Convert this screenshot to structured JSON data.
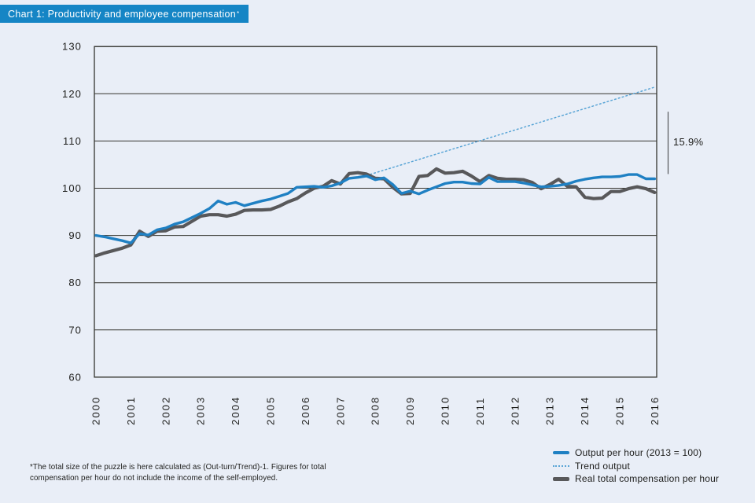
{
  "page": {
    "background": "#e9eef7"
  },
  "header": {
    "title": "Chart 1: Productivity and employee compensation",
    "title_marker": "*",
    "banner_color": "#1585c5"
  },
  "footnote": {
    "text": "*The total size of the puzzle is here calculated as (Out-turn/Trend)-1. Figures for total compensation per hour do not include the income of the self-employed."
  },
  "chart_data": {
    "type": "line",
    "title": "Chart 1: Productivity and employee compensation",
    "xlabel": "",
    "ylabel": "",
    "ylim": [
      60,
      130
    ],
    "xlim": [
      2000,
      2016.1
    ],
    "grid": "horizontal",
    "legend_position": "bottom-right",
    "y_ticks": [
      60,
      70,
      80,
      90,
      100,
      110,
      120,
      130
    ],
    "x_ticks": [
      2000,
      2001,
      2002,
      2003,
      2004,
      2005,
      2006,
      2007,
      2008,
      2009,
      2010,
      2011,
      2012,
      2013,
      2014,
      2015,
      2016
    ],
    "x": [
      2000.0,
      2000.25,
      2000.5,
      2000.75,
      2001.0,
      2001.25,
      2001.5,
      2001.75,
      2002.0,
      2002.25,
      2002.5,
      2002.75,
      2003.0,
      2003.25,
      2003.5,
      2003.75,
      2004.0,
      2004.25,
      2004.5,
      2004.75,
      2005.0,
      2005.25,
      2005.5,
      2005.75,
      2006.0,
      2006.25,
      2006.5,
      2006.75,
      2007.0,
      2007.25,
      2007.5,
      2007.75,
      2008.0,
      2008.25,
      2008.5,
      2008.75,
      2009.0,
      2009.25,
      2009.5,
      2009.75,
      2010.0,
      2010.25,
      2010.5,
      2010.75,
      2011.0,
      2011.25,
      2011.5,
      2011.75,
      2012.0,
      2012.25,
      2012.5,
      2012.75,
      2013.0,
      2013.25,
      2013.5,
      2013.75,
      2014.0,
      2014.25,
      2014.5,
      2014.75,
      2015.0,
      2015.25,
      2015.5,
      2015.75,
      2016.0
    ],
    "series": [
      {
        "name": "Output per hour (2013 = 100)",
        "color": "#1f80c3",
        "style": "solid",
        "width": 3.4,
        "values": [
          90.0,
          89.7,
          89.3,
          88.9,
          88.4,
          90.4,
          90.1,
          91.2,
          91.6,
          92.4,
          92.9,
          93.8,
          94.7,
          95.7,
          97.3,
          96.6,
          97.0,
          96.3,
          96.8,
          97.3,
          97.7,
          98.3,
          98.9,
          100.2,
          100.3,
          100.4,
          100.2,
          100.5,
          101.1,
          102.1,
          102.3,
          102.6,
          101.8,
          102.2,
          100.8,
          98.9,
          99.4,
          98.8,
          99.6,
          100.3,
          101.0,
          101.3,
          101.3,
          101.0,
          100.9,
          102.3,
          101.4,
          101.4,
          101.4,
          101.1,
          100.7,
          100.3,
          100.4,
          100.6,
          100.9,
          101.5,
          101.9,
          102.2,
          102.4,
          102.4,
          102.5,
          102.9,
          102.9,
          102.0,
          102.0
        ]
      },
      {
        "name": "Trend output",
        "color": "#5aa5d6",
        "style": "dotted",
        "width": 1.5,
        "x": [
          2007.75,
          2016.0
        ],
        "values": [
          102.7,
          121.4
        ]
      },
      {
        "name": "Real total compensation per hour",
        "color": "#58585a",
        "style": "solid",
        "width": 4.2,
        "values": [
          85.7,
          86.3,
          86.8,
          87.3,
          88.0,
          90.9,
          89.8,
          90.9,
          91.0,
          91.8,
          91.9,
          93.0,
          94.1,
          94.4,
          94.4,
          94.1,
          94.5,
          95.3,
          95.4,
          95.4,
          95.5,
          96.2,
          97.1,
          97.8,
          99.0,
          100.0,
          100.4,
          101.6,
          100.9,
          103.1,
          103.3,
          103.0,
          102.1,
          102.0,
          100.2,
          98.8,
          98.9,
          102.5,
          102.7,
          104.1,
          103.2,
          103.3,
          103.6,
          102.6,
          101.4,
          102.7,
          102.1,
          101.9,
          101.9,
          101.8,
          101.2,
          99.9,
          100.8,
          101.9,
          100.4,
          100.3,
          98.1,
          97.8,
          97.9,
          99.3,
          99.3,
          99.9,
          100.3,
          99.9,
          99.1
        ]
      }
    ],
    "annotation": {
      "text": "15.9%",
      "bracket_values": [
        103.0,
        116.2
      ]
    }
  }
}
